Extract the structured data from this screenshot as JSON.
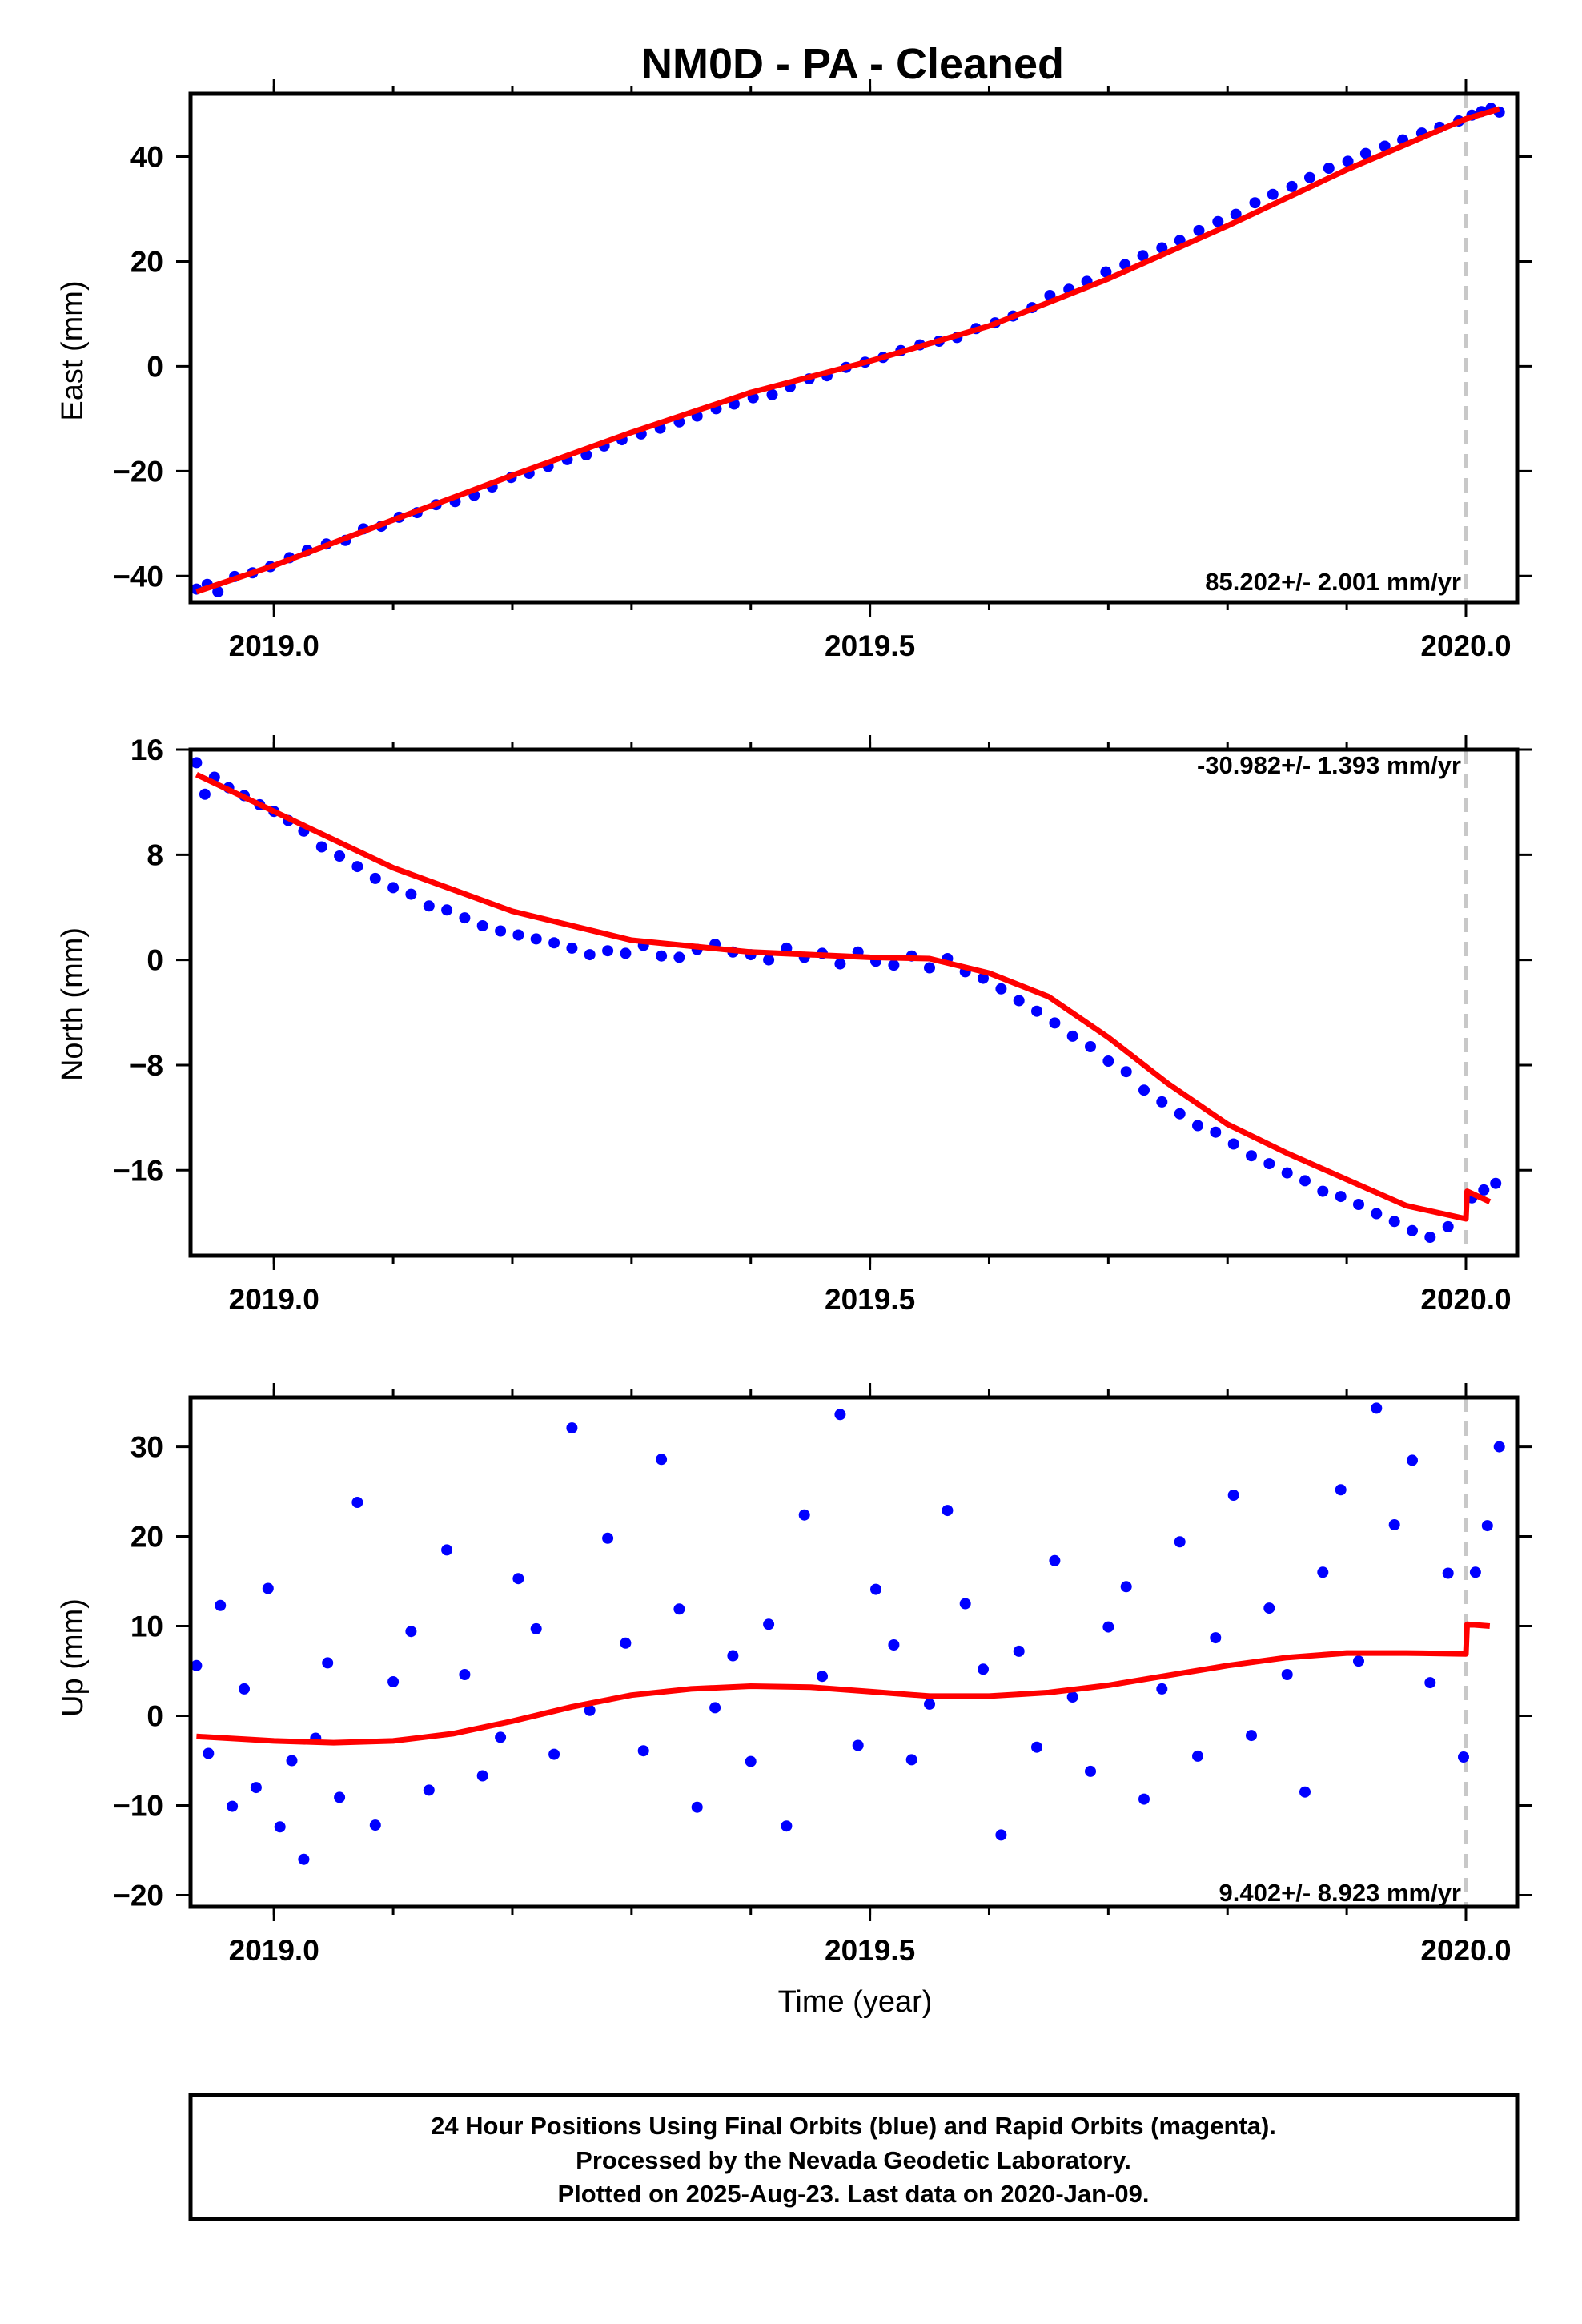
{
  "figure": {
    "title": "NM0D  - PA - Cleaned",
    "xlabel": "Time (year)",
    "footer": [
      "24 Hour Positions Using Final Orbits (blue) and Rapid Orbits (magenta).",
      "Processed by the Nevada Geodetic Laboratory.",
      "Plotted on 2025-Aug-23. Last data on 2020-Jan-09."
    ],
    "colors": {
      "points": "#0000ff",
      "fit": "#ff0000",
      "marker_line": "#c8c8c8",
      "frame": "#000000"
    },
    "marker_line_year": 2020.0
  },
  "chart_data": [
    {
      "type": "scatter",
      "ylabel": "East (mm)",
      "rate_label": "85.202+/- 2.001 mm/yr",
      "rate_placement": "bottom-right",
      "xlim": [
        2018.93,
        2020.043
      ],
      "ylim": [
        -45,
        52
      ],
      "xticks": [
        2019.0,
        2019.5,
        2020.0
      ],
      "xtick_labels": [
        "2019.0",
        "2019.5",
        "2020.0"
      ],
      "yticks": [
        -40,
        -20,
        0,
        20,
        40
      ],
      "ytick_labels": [
        "−40",
        "−20",
        "0",
        "20",
        "40"
      ],
      "series": [
        {
          "role": "data",
          "x": [
            2018.935,
            2018.944,
            2018.953,
            2018.967,
            2018.982,
            2018.997,
            2019.013,
            2019.028,
            2019.044,
            2019.06,
            2019.075,
            2019.09,
            2019.105,
            2019.12,
            2019.136,
            2019.152,
            2019.168,
            2019.183,
            2019.199,
            2019.214,
            2019.23,
            2019.246,
            2019.262,
            2019.277,
            2019.292,
            2019.308,
            2019.324,
            2019.34,
            2019.355,
            2019.371,
            2019.386,
            2019.402,
            2019.418,
            2019.433,
            2019.449,
            2019.464,
            2019.48,
            2019.496,
            2019.511,
            2019.526,
            2019.542,
            2019.558,
            2019.573,
            2019.589,
            2019.605,
            2019.62,
            2019.636,
            2019.651,
            2019.667,
            2019.682,
            2019.698,
            2019.714,
            2019.729,
            2019.745,
            2019.76,
            2019.776,
            2019.792,
            2019.807,
            2019.823,
            2019.838,
            2019.854,
            2019.869,
            2019.885,
            2019.901,
            2019.916,
            2019.932,
            2019.947,
            2019.963,
            2019.978,
            2019.994,
            2020.005,
            2020.013,
            2020.021,
            2020.028
          ],
          "y": [
            -42.5,
            -41.6,
            -43.0,
            -40.1,
            -39.4,
            -38.2,
            -36.5,
            -35.1,
            -33.9,
            -33.2,
            -31.0,
            -30.5,
            -28.8,
            -27.9,
            -26.4,
            -25.8,
            -24.6,
            -23.0,
            -21.2,
            -20.4,
            -19.1,
            -17.8,
            -16.9,
            -15.2,
            -14.0,
            -12.9,
            -11.8,
            -10.6,
            -9.5,
            -8.1,
            -7.2,
            -6.0,
            -5.4,
            -3.9,
            -2.4,
            -1.8,
            -0.2,
            0.8,
            1.7,
            3.0,
            4.1,
            4.8,
            5.5,
            7.2,
            8.3,
            9.6,
            11.2,
            13.5,
            14.7,
            16.2,
            18.0,
            19.4,
            21.1,
            22.6,
            24.0,
            25.9,
            27.6,
            29.0,
            31.2,
            32.8,
            34.3,
            36.0,
            37.8,
            39.1,
            40.6,
            42.0,
            43.2,
            44.5,
            45.6,
            46.8,
            47.9,
            48.6,
            49.2,
            48.5
          ]
        },
        {
          "role": "fit",
          "x": [
            2018.935,
            2019.0,
            2019.1,
            2019.2,
            2019.3,
            2019.4,
            2019.5,
            2019.6,
            2019.7,
            2019.8,
            2019.9,
            2020.0,
            2020.028
          ],
          "y": [
            -43.0,
            -38.0,
            -29.3,
            -20.8,
            -12.6,
            -5.0,
            1.0,
            7.7,
            16.7,
            26.8,
            37.5,
            47.2,
            49.1
          ]
        }
      ]
    },
    {
      "type": "scatter",
      "ylabel": "North (mm)",
      "rate_label": "-30.982+/- 1.393 mm/yr",
      "rate_placement": "top-right",
      "xlim": [
        2018.93,
        2020.043
      ],
      "ylim": [
        -22.5,
        16
      ],
      "xticks": [
        2019.0,
        2019.5,
        2020.0
      ],
      "xtick_labels": [
        "2019.0",
        "2019.5",
        "2020.0"
      ],
      "yticks": [
        -16,
        -8,
        0,
        8,
        16
      ],
      "ytick_labels": [
        "−16",
        "−8",
        "0",
        "8",
        "16"
      ],
      "series": [
        {
          "role": "data",
          "x": [
            2018.935,
            2018.942,
            2018.95,
            2018.962,
            2018.975,
            2018.988,
            2019.0,
            2019.012,
            2019.025,
            2019.04,
            2019.055,
            2019.07,
            2019.085,
            2019.1,
            2019.115,
            2019.13,
            2019.145,
            2019.16,
            2019.175,
            2019.19,
            2019.205,
            2019.22,
            2019.235,
            2019.25,
            2019.265,
            2019.28,
            2019.295,
            2019.31,
            2019.325,
            2019.34,
            2019.355,
            2019.37,
            2019.385,
            2019.4,
            2019.415,
            2019.43,
            2019.445,
            2019.46,
            2019.475,
            2019.49,
            2019.505,
            2019.52,
            2019.535,
            2019.55,
            2019.565,
            2019.58,
            2019.595,
            2019.61,
            2019.625,
            2019.64,
            2019.655,
            2019.67,
            2019.685,
            2019.7,
            2019.715,
            2019.73,
            2019.745,
            2019.76,
            2019.775,
            2019.79,
            2019.805,
            2019.82,
            2019.835,
            2019.85,
            2019.865,
            2019.88,
            2019.895,
            2019.91,
            2019.925,
            2019.94,
            2019.955,
            2019.97,
            2019.985,
            2020.005,
            2020.015,
            2020.025
          ],
          "y": [
            15.0,
            12.6,
            13.9,
            13.1,
            12.5,
            11.8,
            11.3,
            10.6,
            9.8,
            8.6,
            7.9,
            7.1,
            6.2,
            5.5,
            5.0,
            4.1,
            3.8,
            3.2,
            2.6,
            2.2,
            1.9,
            1.6,
            1.3,
            0.9,
            0.4,
            0.7,
            0.5,
            1.1,
            0.3,
            0.2,
            0.8,
            1.2,
            0.6,
            0.4,
            0.0,
            0.9,
            0.2,
            0.5,
            -0.3,
            0.6,
            -0.1,
            -0.4,
            0.3,
            -0.6,
            0.1,
            -0.9,
            -1.4,
            -2.2,
            -3.1,
            -3.9,
            -4.8,
            -5.8,
            -6.6,
            -7.7,
            -8.5,
            -9.9,
            -10.8,
            -11.7,
            -12.6,
            -13.1,
            -14.0,
            -14.9,
            -15.5,
            -16.2,
            -16.8,
            -17.6,
            -18.0,
            -18.6,
            -19.3,
            -19.9,
            -20.6,
            -21.1,
            -20.3,
            -18.1,
            -17.5,
            -17.0
          ]
        },
        {
          "role": "fit",
          "x": [
            2018.935,
            2019.0,
            2019.1,
            2019.2,
            2019.3,
            2019.4,
            2019.5,
            2019.55,
            2019.6,
            2019.65,
            2019.7,
            2019.75,
            2019.8,
            2019.85,
            2019.9,
            2019.95,
            2020.0,
            2020.001,
            2020.02
          ],
          "y": [
            14.1,
            11.3,
            7.0,
            3.7,
            1.5,
            0.6,
            0.2,
            0.1,
            -1.0,
            -2.8,
            -5.9,
            -9.4,
            -12.5,
            -14.7,
            -16.7,
            -18.7,
            -19.7,
            -17.6,
            -18.4
          ]
        }
      ]
    },
    {
      "type": "scatter",
      "ylabel": "Up (mm)",
      "rate_label": "9.402+/- 8.923 mm/yr",
      "rate_placement": "bottom-right",
      "xlim": [
        2018.93,
        2020.043
      ],
      "ylim": [
        -21.3,
        35.5
      ],
      "xticks": [
        2019.0,
        2019.5,
        2020.0
      ],
      "xtick_labels": [
        "2019.0",
        "2019.5",
        "2020.0"
      ],
      "yticks": [
        -20,
        -10,
        0,
        10,
        20,
        30
      ],
      "ytick_labels": [
        "−20",
        "−10",
        "0",
        "10",
        "20",
        "30"
      ],
      "series": [
        {
          "role": "data",
          "x": [
            2018.935,
            2018.945,
            2018.955,
            2018.965,
            2018.975,
            2018.985,
            2018.995,
            2019.005,
            2019.015,
            2019.025,
            2019.035,
            2019.045,
            2019.055,
            2019.07,
            2019.085,
            2019.1,
            2019.115,
            2019.13,
            2019.145,
            2019.16,
            2019.175,
            2019.19,
            2019.205,
            2019.22,
            2019.235,
            2019.25,
            2019.265,
            2019.28,
            2019.295,
            2019.31,
            2019.325,
            2019.34,
            2019.355,
            2019.37,
            2019.385,
            2019.4,
            2019.415,
            2019.43,
            2019.445,
            2019.46,
            2019.475,
            2019.49,
            2019.505,
            2019.52,
            2019.535,
            2019.55,
            2019.565,
            2019.58,
            2019.595,
            2019.61,
            2019.625,
            2019.64,
            2019.655,
            2019.67,
            2019.685,
            2019.7,
            2019.715,
            2019.73,
            2019.745,
            2019.76,
            2019.775,
            2019.79,
            2019.805,
            2019.82,
            2019.835,
            2019.85,
            2019.865,
            2019.88,
            2019.895,
            2019.91,
            2019.925,
            2019.94,
            2019.955,
            2019.97,
            2019.985,
            2019.998,
            2020.008,
            2020.018,
            2020.028
          ],
          "y": [
            5.6,
            -4.2,
            12.3,
            -10.1,
            3.0,
            -8.0,
            14.2,
            -12.4,
            -5.0,
            -16.0,
            -2.5,
            5.9,
            -9.1,
            23.8,
            -12.2,
            3.8,
            9.4,
            -8.3,
            18.5,
            4.6,
            -6.7,
            -2.4,
            15.3,
            9.7,
            -4.3,
            32.1,
            0.6,
            19.8,
            8.1,
            -3.9,
            28.6,
            11.9,
            -10.2,
            0.9,
            6.7,
            -5.1,
            10.2,
            -12.3,
            22.4,
            4.4,
            33.6,
            -3.3,
            14.1,
            7.9,
            -4.9,
            1.3,
            22.9,
            12.5,
            5.2,
            -13.3,
            7.2,
            -3.5,
            17.3,
            2.1,
            -6.2,
            9.9,
            14.4,
            -9.3,
            3.0,
            19.4,
            -4.5,
            8.7,
            24.6,
            -2.2,
            12.0,
            4.6,
            -8.5,
            16.0,
            25.2,
            6.1,
            34.3,
            21.3,
            28.5,
            3.7,
            15.9,
            -4.6,
            16.0,
            21.2,
            30.0
          ]
        },
        {
          "role": "fit",
          "x": [
            2018.935,
            2019.0,
            2019.05,
            2019.1,
            2019.15,
            2019.2,
            2019.25,
            2019.3,
            2019.35,
            2019.4,
            2019.45,
            2019.5,
            2019.55,
            2019.6,
            2019.65,
            2019.7,
            2019.75,
            2019.8,
            2019.85,
            2019.9,
            2019.95,
            2020.0,
            2020.001,
            2020.02
          ],
          "y": [
            -2.3,
            -2.8,
            -3.0,
            -2.8,
            -2.0,
            -0.6,
            1.0,
            2.3,
            3.0,
            3.3,
            3.2,
            2.7,
            2.2,
            2.2,
            2.6,
            3.4,
            4.5,
            5.6,
            6.5,
            7.0,
            7.0,
            6.9,
            10.2,
            10.0
          ]
        }
      ]
    }
  ]
}
